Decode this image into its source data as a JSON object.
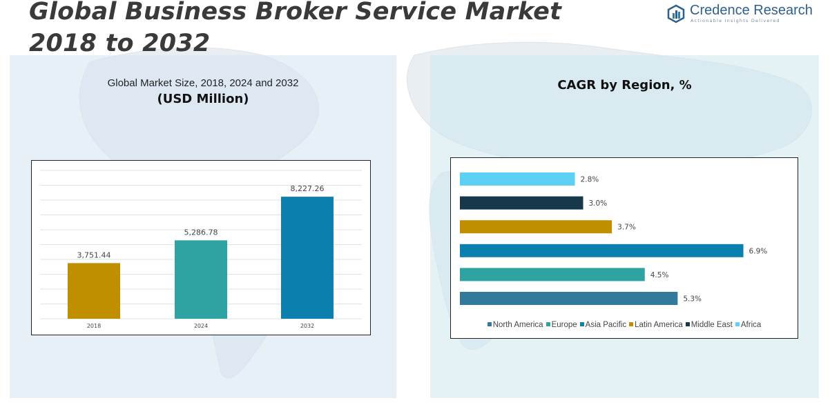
{
  "header": {
    "title_line1": "Global Business Broker Service Market",
    "title_line2": "2018 to 2032"
  },
  "logo": {
    "name": "Credence Research",
    "tagline": "Actionable Insights Delivered"
  },
  "colors": {
    "title": "#3a3a3a",
    "panel_left": "#d6e4f0",
    "panel_right": "#cee8ee"
  },
  "chart_data": [
    {
      "type": "bar",
      "title": "Global Market Size, 2018, 2024 and 2032",
      "subtitle": "(USD Million)",
      "categories": [
        "2018",
        "2024",
        "2032"
      ],
      "values": [
        3751.44,
        5286.78,
        8227.26
      ],
      "value_labels": [
        "3,751.44",
        "5,286.78",
        "8,227.26"
      ],
      "colors": [
        "#bf8f00",
        "#2ea3a2",
        "#0b7fae"
      ],
      "ylim": [
        0,
        10000
      ],
      "grid": true
    },
    {
      "type": "bar",
      "orientation": "horizontal",
      "title": "CAGR by Region, %",
      "categories": [
        "North America",
        "Europe",
        "Asia Pacific",
        "Latin America",
        "Middle East",
        "Africa"
      ],
      "values": [
        5.3,
        4.5,
        6.9,
        3.7,
        3.0,
        2.8
      ],
      "value_labels": [
        "5.3%",
        "4.5%",
        "6.9%",
        "3.7%",
        "3.0%",
        "2.8%"
      ],
      "colors": [
        "#317a9b",
        "#2ea3a2",
        "#0b7fae",
        "#bf8f00",
        "#17384a",
        "#5cd1f5"
      ],
      "xlim": [
        0,
        7.2
      ],
      "legend_position": "bottom"
    }
  ]
}
